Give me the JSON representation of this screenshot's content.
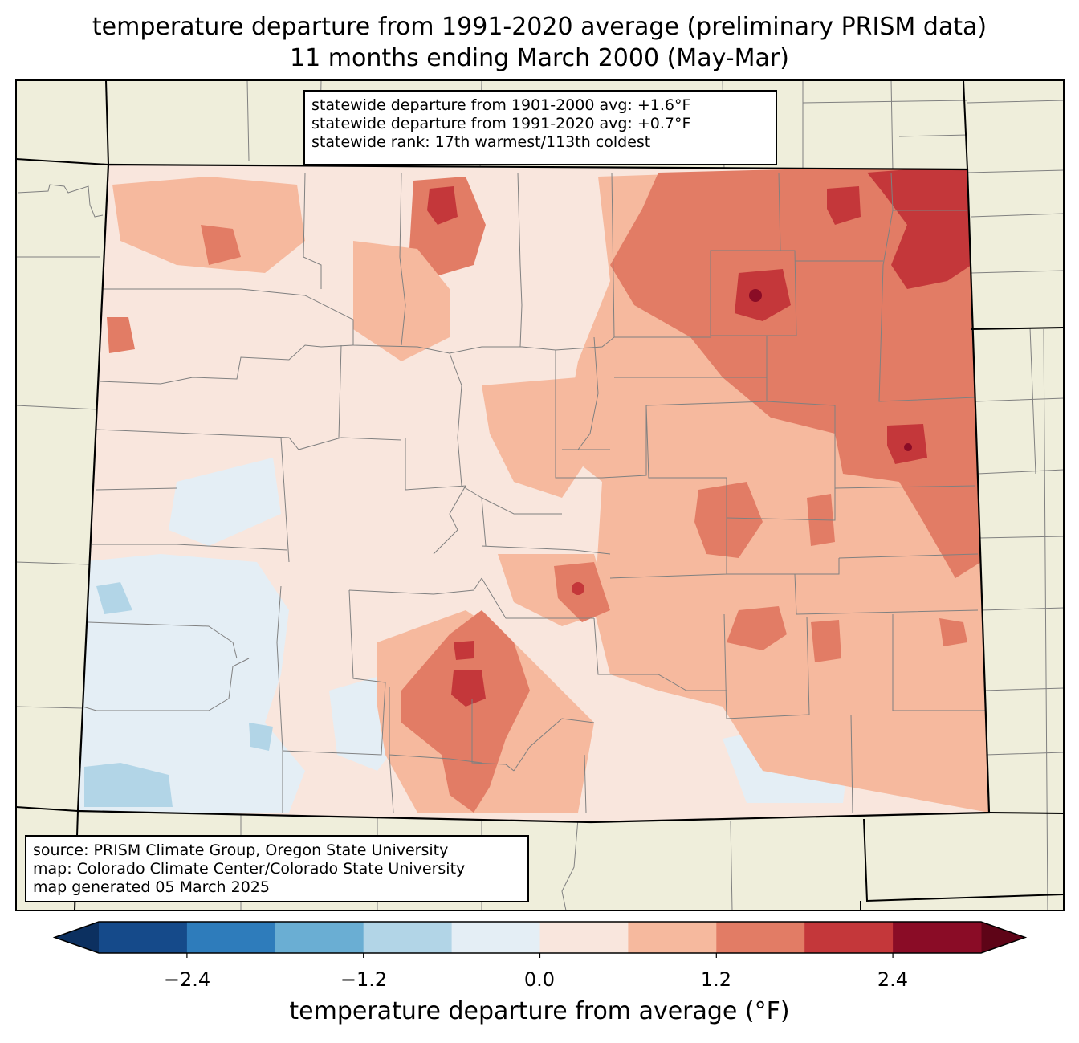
{
  "title": {
    "line1": "temperature departure from 1991-2020 average (preliminary PRISM data)",
    "line2": "11 months ending March 2000 (May-Mar)"
  },
  "stats": {
    "line1": "statewide departure from 1901-2000 avg: +1.6°F",
    "line2": "statewide departure from 1991-2020 avg: +0.7°F",
    "line3": "statewide rank: 17th warmest/113th coldest"
  },
  "source": {
    "line1": "source: PRISM Climate Group, Oregon State University",
    "line2": "map: Colorado Climate Center/Colorado State University",
    "line3": "map generated 05 March 2025"
  },
  "colorbar": {
    "label": "temperature departure from average (°F)",
    "ticks": [
      "−2.4",
      "−1.2",
      "0.0",
      "1.2",
      "2.4"
    ],
    "bins": [
      {
        "lo": -3.0,
        "hi": -2.4,
        "color": "#154a8a"
      },
      {
        "lo": -2.4,
        "hi": -1.8,
        "color": "#2e7cbb"
      },
      {
        "lo": -1.8,
        "hi": -1.2,
        "color": "#6aaed3"
      },
      {
        "lo": -1.2,
        "hi": -0.6,
        "color": "#b2d5e7"
      },
      {
        "lo": -0.6,
        "hi": 0.0,
        "color": "#e4eef5"
      },
      {
        "lo": 0.0,
        "hi": 0.6,
        "color": "#f9e6dd"
      },
      {
        "lo": 0.6,
        "hi": 1.2,
        "color": "#f6b99e"
      },
      {
        "lo": 1.2,
        "hi": 1.8,
        "color": "#e27c65"
      },
      {
        "lo": 1.8,
        "hi": 2.4,
        "color": "#c4373a"
      },
      {
        "lo": 2.4,
        "hi": 3.0,
        "color": "#8a0c26"
      }
    ],
    "under_color": "#0c3060",
    "over_color": "#5e0417"
  },
  "colors": {
    "neighbor_land": "#efeedb",
    "state_border": "#000000",
    "county_border": "#808080"
  }
}
